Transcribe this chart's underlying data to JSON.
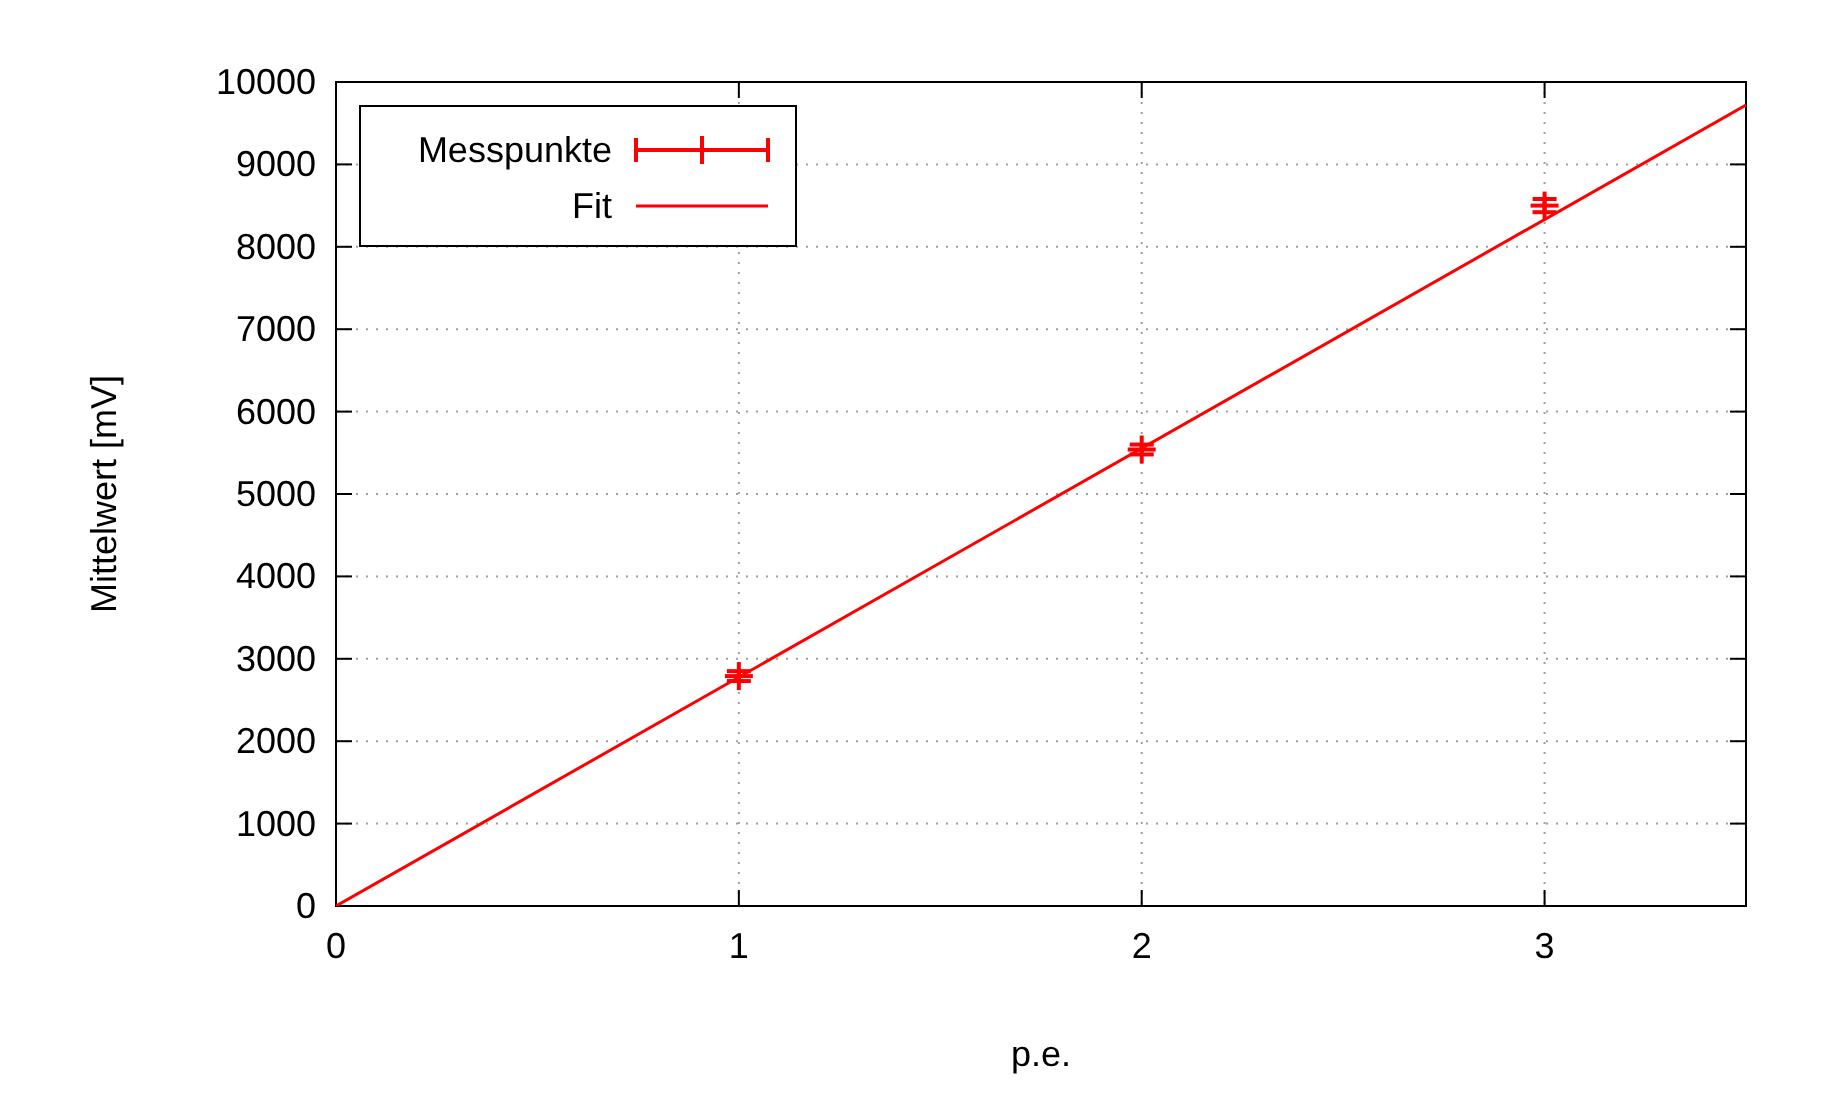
{
  "chart_data": {
    "type": "scatter",
    "xlabel": "p.e.",
    "ylabel": "Mittelwert [mV]",
    "xlim": [
      0,
      3.5
    ],
    "xticks": [
      0,
      1,
      2,
      3
    ],
    "ylim": [
      0,
      10000
    ],
    "yticks": [
      0,
      1000,
      2000,
      3000,
      4000,
      5000,
      6000,
      7000,
      8000,
      9000,
      10000
    ],
    "grid": true,
    "legend": "top left",
    "series": [
      {
        "name": "Messpunkte",
        "color": "#ff0000",
        "x": [
          1,
          2,
          3
        ],
        "values": [
          2790,
          5540,
          8500
        ],
        "errors": [
          60,
          60,
          80
        ],
        "marker": "cross"
      },
      {
        "name": "Fit",
        "type": "line",
        "color": "#ff0000",
        "x": [
          0,
          3.5
        ],
        "values": [
          0,
          9720
        ]
      }
    ]
  }
}
